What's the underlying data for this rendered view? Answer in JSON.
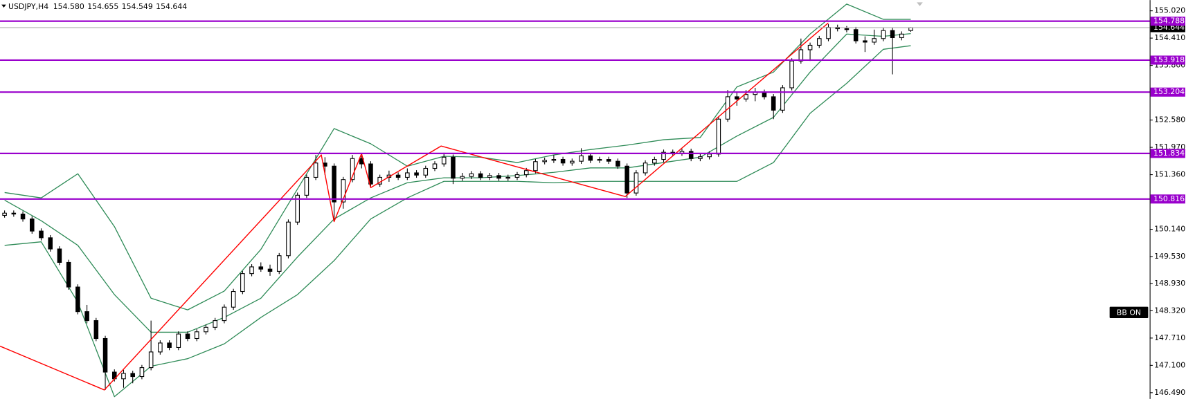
{
  "chart_data": {
    "type": "candlestick",
    "title": "USDJPY,H4",
    "quote": [
      {
        "value": 154.58,
        "label": "154.580"
      },
      {
        "value": 154.655,
        "label": "154.655"
      },
      {
        "value": 154.549,
        "label": "154.549"
      },
      {
        "value": 154.644,
        "label": "154.644"
      }
    ],
    "xlim": [
      -0.5,
      125.1
    ],
    "ylim": [
      146.35,
      155.26
    ],
    "yticks": [
      {
        "value": 155.02,
        "label": "155.020"
      },
      {
        "value": 154.41,
        "label": "154.410"
      },
      {
        "value": 153.8,
        "label": "153.800"
      },
      {
        "value": 152.58,
        "label": "152.580"
      },
      {
        "value": 151.97,
        "label": "151.970"
      },
      {
        "value": 151.36,
        "label": "151.360"
      },
      {
        "value": 150.14,
        "label": "150.140"
      },
      {
        "value": 149.53,
        "label": "149.530"
      },
      {
        "value": 148.93,
        "label": "148.930"
      },
      {
        "value": 148.32,
        "label": "148.320"
      },
      {
        "value": 147.71,
        "label": "147.710"
      },
      {
        "value": 147.1,
        "label": "147.100"
      },
      {
        "value": 146.49,
        "label": "146.490"
      }
    ],
    "bull_color": "#ffffff",
    "bear_color": "#000000",
    "candles": [
      [
        150.45,
        150.56,
        150.4,
        150.5
      ],
      [
        150.5,
        150.56,
        150.42,
        150.48
      ],
      [
        150.48,
        150.54,
        150.31,
        150.37
      ],
      [
        150.37,
        150.43,
        150.04,
        150.1
      ],
      [
        150.1,
        150.16,
        149.89,
        149.95
      ],
      [
        149.95,
        150.01,
        149.64,
        149.7
      ],
      [
        149.7,
        149.76,
        149.34,
        149.4
      ],
      [
        149.4,
        149.46,
        148.79,
        148.85
      ],
      [
        148.85,
        148.91,
        148.24,
        148.3
      ],
      [
        148.3,
        148.45,
        148.04,
        148.1
      ],
      [
        148.1,
        148.16,
        147.64,
        147.7
      ],
      [
        147.7,
        147.76,
        146.55,
        146.95
      ],
      [
        146.95,
        147.01,
        146.74,
        146.8
      ],
      [
        146.8,
        147.0,
        146.6,
        146.92
      ],
      [
        146.92,
        146.98,
        146.7,
        146.85
      ],
      [
        146.85,
        147.11,
        146.79,
        147.05
      ],
      [
        147.05,
        148.1,
        146.99,
        147.4
      ],
      [
        147.4,
        147.66,
        147.34,
        147.6
      ],
      [
        147.6,
        147.66,
        147.44,
        147.5
      ],
      [
        147.5,
        147.86,
        147.44,
        147.8
      ],
      [
        147.8,
        147.86,
        147.64,
        147.7
      ],
      [
        147.7,
        147.91,
        147.64,
        147.85
      ],
      [
        147.85,
        148.01,
        147.79,
        147.95
      ],
      [
        147.95,
        148.16,
        147.89,
        148.1
      ],
      [
        148.1,
        148.46,
        148.04,
        148.4
      ],
      [
        148.4,
        148.81,
        148.34,
        148.75
      ],
      [
        148.75,
        149.21,
        148.69,
        149.15
      ],
      [
        149.15,
        149.36,
        149.09,
        149.3
      ],
      [
        149.3,
        149.4,
        149.19,
        149.25
      ],
      [
        149.25,
        149.35,
        149.1,
        149.2
      ],
      [
        149.2,
        149.61,
        149.14,
        149.55
      ],
      [
        149.55,
        150.36,
        149.49,
        150.3
      ],
      [
        150.3,
        150.96,
        150.24,
        150.9
      ],
      [
        150.9,
        151.36,
        150.84,
        151.3
      ],
      [
        151.3,
        151.8,
        151.24,
        151.62
      ],
      [
        151.62,
        151.75,
        151.35,
        151.55
      ],
      [
        151.55,
        151.61,
        150.31,
        150.75
      ],
      [
        150.75,
        151.31,
        150.6,
        151.25
      ],
      [
        151.25,
        151.8,
        151.19,
        151.72
      ],
      [
        151.72,
        151.78,
        151.5,
        151.6
      ],
      [
        151.6,
        151.66,
        151.09,
        151.15
      ],
      [
        151.15,
        151.36,
        151.09,
        151.3
      ],
      [
        151.3,
        151.45,
        151.2,
        151.35
      ],
      [
        151.35,
        151.41,
        151.24,
        151.3
      ],
      [
        151.3,
        151.5,
        151.24,
        151.4
      ],
      [
        151.4,
        151.46,
        151.29,
        151.35
      ],
      [
        151.35,
        151.56,
        151.29,
        151.5
      ],
      [
        151.5,
        151.66,
        151.44,
        151.6
      ],
      [
        151.6,
        151.85,
        151.54,
        151.75
      ],
      [
        151.75,
        151.81,
        151.15,
        151.28
      ],
      [
        151.28,
        151.4,
        151.22,
        151.32
      ],
      [
        151.32,
        151.44,
        151.26,
        151.38
      ],
      [
        151.38,
        151.44,
        151.24,
        151.3
      ],
      [
        151.3,
        151.4,
        151.24,
        151.34
      ],
      [
        151.34,
        151.4,
        151.22,
        151.28
      ],
      [
        151.28,
        151.36,
        151.22,
        151.3
      ],
      [
        151.3,
        151.42,
        151.24,
        151.36
      ],
      [
        151.36,
        151.51,
        151.3,
        151.45
      ],
      [
        151.45,
        151.71,
        151.39,
        151.65
      ],
      [
        151.65,
        151.74,
        151.59,
        151.68
      ],
      [
        151.68,
        151.8,
        151.62,
        151.7
      ],
      [
        151.7,
        151.76,
        151.56,
        151.62
      ],
      [
        151.62,
        151.72,
        151.56,
        151.66
      ],
      [
        151.66,
        151.95,
        151.6,
        151.78
      ],
      [
        151.78,
        151.84,
        151.62,
        151.68
      ],
      [
        151.68,
        151.76,
        151.62,
        151.7
      ],
      [
        151.7,
        151.76,
        151.6,
        151.66
      ],
      [
        151.66,
        151.72,
        151.49,
        151.55
      ],
      [
        151.55,
        151.61,
        150.84,
        150.95
      ],
      [
        150.95,
        151.46,
        150.89,
        151.4
      ],
      [
        151.4,
        151.68,
        151.34,
        151.62
      ],
      [
        151.62,
        151.76,
        151.56,
        151.7
      ],
      [
        151.7,
        151.92,
        151.64,
        151.86
      ],
      [
        151.86,
        151.92,
        151.78,
        151.84
      ],
      [
        151.84,
        151.94,
        151.78,
        151.88
      ],
      [
        151.88,
        151.94,
        151.66,
        151.72
      ],
      [
        151.72,
        151.82,
        151.66,
        151.76
      ],
      [
        151.76,
        151.88,
        151.7,
        151.82
      ],
      [
        151.82,
        152.66,
        151.76,
        152.6
      ],
      [
        152.6,
        153.25,
        152.54,
        153.1
      ],
      [
        153.1,
        153.2,
        152.9,
        153.05
      ],
      [
        153.05,
        153.25,
        152.99,
        153.15
      ],
      [
        153.15,
        153.3,
        153.0,
        153.2
      ],
      [
        153.2,
        153.26,
        153.04,
        153.1
      ],
      [
        153.1,
        153.16,
        152.6,
        152.8
      ],
      [
        152.8,
        153.36,
        152.74,
        153.3
      ],
      [
        153.3,
        153.96,
        153.24,
        153.9
      ],
      [
        153.9,
        154.4,
        153.84,
        154.15
      ],
      [
        154.15,
        154.31,
        153.9,
        154.25
      ],
      [
        154.25,
        154.46,
        154.19,
        154.4
      ],
      [
        154.4,
        154.72,
        154.34,
        154.65
      ],
      [
        154.65,
        154.71,
        154.56,
        154.62
      ],
      [
        154.62,
        154.68,
        154.54,
        154.6
      ],
      [
        154.6,
        154.66,
        154.29,
        154.35
      ],
      [
        154.35,
        154.45,
        154.1,
        154.32
      ],
      [
        154.32,
        154.6,
        154.26,
        154.4
      ],
      [
        154.4,
        154.64,
        154.34,
        154.58
      ],
      [
        154.58,
        154.64,
        153.6,
        154.42
      ],
      [
        154.42,
        154.56,
        154.36,
        154.5
      ],
      [
        154.58,
        154.655,
        154.549,
        154.644
      ]
    ],
    "bands": {
      "color": "#2e8b57",
      "x": [
        0,
        4,
        8,
        12,
        16,
        20,
        24,
        28,
        32,
        36,
        40,
        44,
        48,
        52,
        56,
        60,
        64,
        68,
        72,
        76,
        80,
        84,
        88,
        92,
        96,
        99
      ],
      "upper": [
        150.96,
        150.84,
        151.38,
        150.2,
        148.6,
        148.34,
        148.76,
        149.69,
        151.04,
        152.39,
        152.05,
        151.55,
        151.77,
        151.75,
        151.63,
        151.8,
        151.92,
        152.02,
        152.14,
        152.19,
        153.32,
        153.65,
        154.5,
        155.17,
        154.83,
        154.83
      ],
      "middle": [
        150.79,
        150.33,
        149.78,
        148.68,
        147.84,
        147.84,
        148.17,
        148.6,
        149.52,
        150.37,
        150.84,
        151.18,
        151.29,
        151.29,
        151.34,
        151.41,
        151.51,
        151.51,
        151.63,
        151.75,
        152.22,
        152.64,
        153.65,
        154.5,
        154.45,
        154.51
      ],
      "lower": [
        149.78,
        149.86,
        148.51,
        146.4,
        147.08,
        147.25,
        147.58,
        148.17,
        148.68,
        149.44,
        150.37,
        150.84,
        151.21,
        151.21,
        151.21,
        151.18,
        151.21,
        151.21,
        151.21,
        151.21,
        151.21,
        151.63,
        152.73,
        153.4,
        154.16,
        154.24
      ]
    },
    "zigzag": {
      "color": "#ff0000",
      "x": [
        -0.5,
        10.9,
        34.6,
        36.0,
        39.0,
        40.0,
        47.7,
        67.8,
        90.0
      ],
      "y": [
        147.53,
        146.55,
        151.8,
        150.31,
        151.83,
        151.07,
        152.0,
        150.87,
        154.75
      ]
    },
    "level_color": "#9900cc",
    "levels": [
      {
        "value": 154.788,
        "label": "154.788"
      },
      {
        "value": 153.918,
        "label": "153.918"
      },
      {
        "value": 153.204,
        "label": "153.204"
      },
      {
        "value": 151.834,
        "label": "151.834"
      },
      {
        "value": 150.816,
        "label": "150.816"
      }
    ],
    "last_price": {
      "value": 154.644,
      "label": "154.644"
    },
    "button": "BB ON"
  }
}
